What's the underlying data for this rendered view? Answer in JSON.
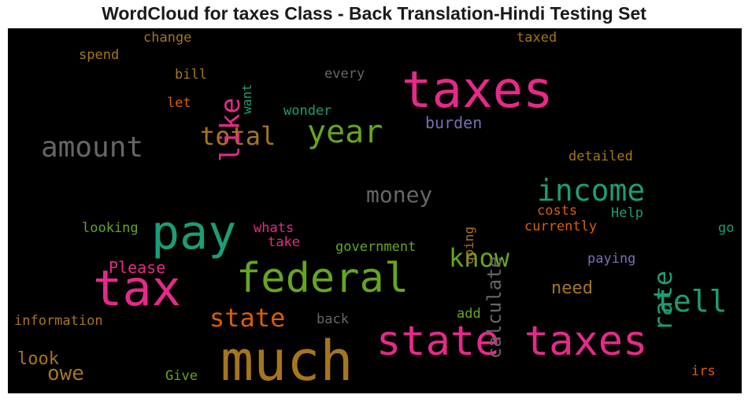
{
  "title": "WordCloud for taxes Class - Back Translation-Hindi Testing Set",
  "colors": {
    "pink": "#e7298a",
    "green": "#1b9e77",
    "olive": "#66a61e",
    "gold": "#a6761d",
    "orange": "#d95f02",
    "purple": "#7570b3",
    "gray": "#666666",
    "background": "#000000"
  },
  "words": {
    "taxes": "taxes",
    "tax": "tax",
    "much": "much",
    "state_taxes": "state taxes",
    "federal": "federal",
    "pay": "pay",
    "income": "income",
    "year": "year",
    "amount": "amount",
    "tell": "tell",
    "total": "total",
    "state": "state",
    "know": "know",
    "rate": "rate",
    "like": "like",
    "money": "money",
    "calculate": "calculate",
    "burden": "burden",
    "owe": "owe",
    "need": "need",
    "look": "look",
    "please": "Please",
    "government": "government",
    "detailed": "detailed",
    "costs": "costs",
    "currently": "currently",
    "help": "Help",
    "paying": "paying",
    "go": "go",
    "whats": "whats",
    "take": "take",
    "looking": "looking",
    "information": "information",
    "back": "back",
    "add": "add",
    "give": "Give",
    "irs": "irs",
    "going": "going",
    "wonder": "wonder",
    "let": "let",
    "bill": "bill",
    "want": "want",
    "every": "every",
    "spend": "spend",
    "change": "change",
    "taxed": "taxed"
  }
}
